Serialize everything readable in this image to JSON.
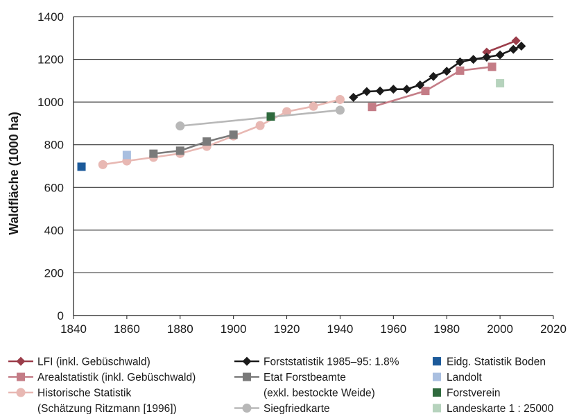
{
  "chart_data": {
    "type": "line",
    "ylabel": "Waldfläche (1000 ha)",
    "xlim": [
      1840,
      2020
    ],
    "ylim": [
      0,
      1400
    ],
    "x_ticks": [
      1840,
      1860,
      1880,
      1900,
      1920,
      1940,
      1960,
      1980,
      2000,
      2020
    ],
    "y_ticks": [
      0,
      200,
      400,
      600,
      800,
      1000,
      1200,
      1400
    ],
    "grid": "horizontal",
    "legend_position": "bottom",
    "series": [
      {
        "name": "LFI (inkl. Gebüschwald)",
        "color": "#9b3d4a",
        "marker": "diamond",
        "line": true,
        "legend_lines": [
          "LFI (inkl. Gebüschwald)"
        ],
        "x": [
          1995,
          2006
        ],
        "y": [
          1234,
          1287
        ]
      },
      {
        "name": "Arealstatistik (inkl. Gebüschwald)",
        "color": "#c47c86",
        "marker": "square",
        "line": true,
        "legend_lines": [
          "Arealstatistik (inkl. Gebüschwald)"
        ],
        "x": [
          1952,
          1972,
          1985,
          1997
        ],
        "y": [
          977,
          1052,
          1147,
          1165
        ]
      },
      {
        "name": "Historische Statistik (Schätzung Ritzmann [1996])",
        "color": "#e8b8b3",
        "marker": "circle",
        "line": true,
        "legend_lines": [
          "Historische Statistik",
          "(Schätzung Ritzmann [1996])"
        ],
        "x": [
          1851,
          1860,
          1870,
          1880,
          1890,
          1900,
          1910,
          1920,
          1930,
          1940
        ],
        "y": [
          707,
          724,
          741,
          759,
          792,
          841,
          890,
          955,
          980,
          1012
        ]
      },
      {
        "name": "Forststatistik 1985–95: 1.8%",
        "color": "#1a1a1a",
        "marker": "diamond",
        "line": true,
        "legend_lines": [
          "Forststatistik 1985–95: 1.8%"
        ],
        "x": [
          1945,
          1950,
          1955,
          1960,
          1965,
          1970,
          1975,
          1980,
          1985,
          1990,
          1995,
          2000,
          2005,
          2008
        ],
        "y": [
          1022,
          1049,
          1052,
          1060,
          1060,
          1080,
          1120,
          1144,
          1188,
          1200,
          1210,
          1221,
          1247,
          1262
        ]
      },
      {
        "name": "Etat Forstbeamte (exkl. bestockte Weide)",
        "color": "#7a7a7a",
        "marker": "square",
        "line": true,
        "legend_lines": [
          "Etat Forstbeamte",
          "(exkl. bestockte Weide)"
        ],
        "x": [
          1870,
          1880,
          1890,
          1900
        ],
        "y": [
          758,
          772,
          815,
          847
        ]
      },
      {
        "name": "Siegfriedkarte",
        "color": "#b8b8b8",
        "marker": "circle",
        "line": true,
        "legend_lines": [
          "Siegfriedkarte"
        ],
        "x": [
          1880,
          1940
        ],
        "y": [
          888,
          962
        ]
      },
      {
        "name": "Eidg. Statistik Boden",
        "color": "#1c5a9a",
        "marker": "square",
        "line": false,
        "legend_lines": [
          "Eidg. Statistik Boden"
        ],
        "x": [
          1843
        ],
        "y": [
          697
        ]
      },
      {
        "name": "Landolt",
        "color": "#a9bfe0",
        "marker": "square",
        "line": false,
        "legend_lines": [
          "Landolt"
        ],
        "x": [
          1860
        ],
        "y": [
          752
        ]
      },
      {
        "name": "Forstverein",
        "color": "#2f6a3d",
        "marker": "square",
        "line": false,
        "legend_lines": [
          "Forstverein"
        ],
        "x": [
          1914
        ],
        "y": [
          932
        ]
      },
      {
        "name": "Landeskarte 1 : 25000",
        "color": "#b6d3bd",
        "marker": "square",
        "line": false,
        "legend_lines": [
          "Landeskarte 1 : 25000"
        ],
        "x": [
          2000
        ],
        "y": [
          1088
        ]
      }
    ]
  }
}
